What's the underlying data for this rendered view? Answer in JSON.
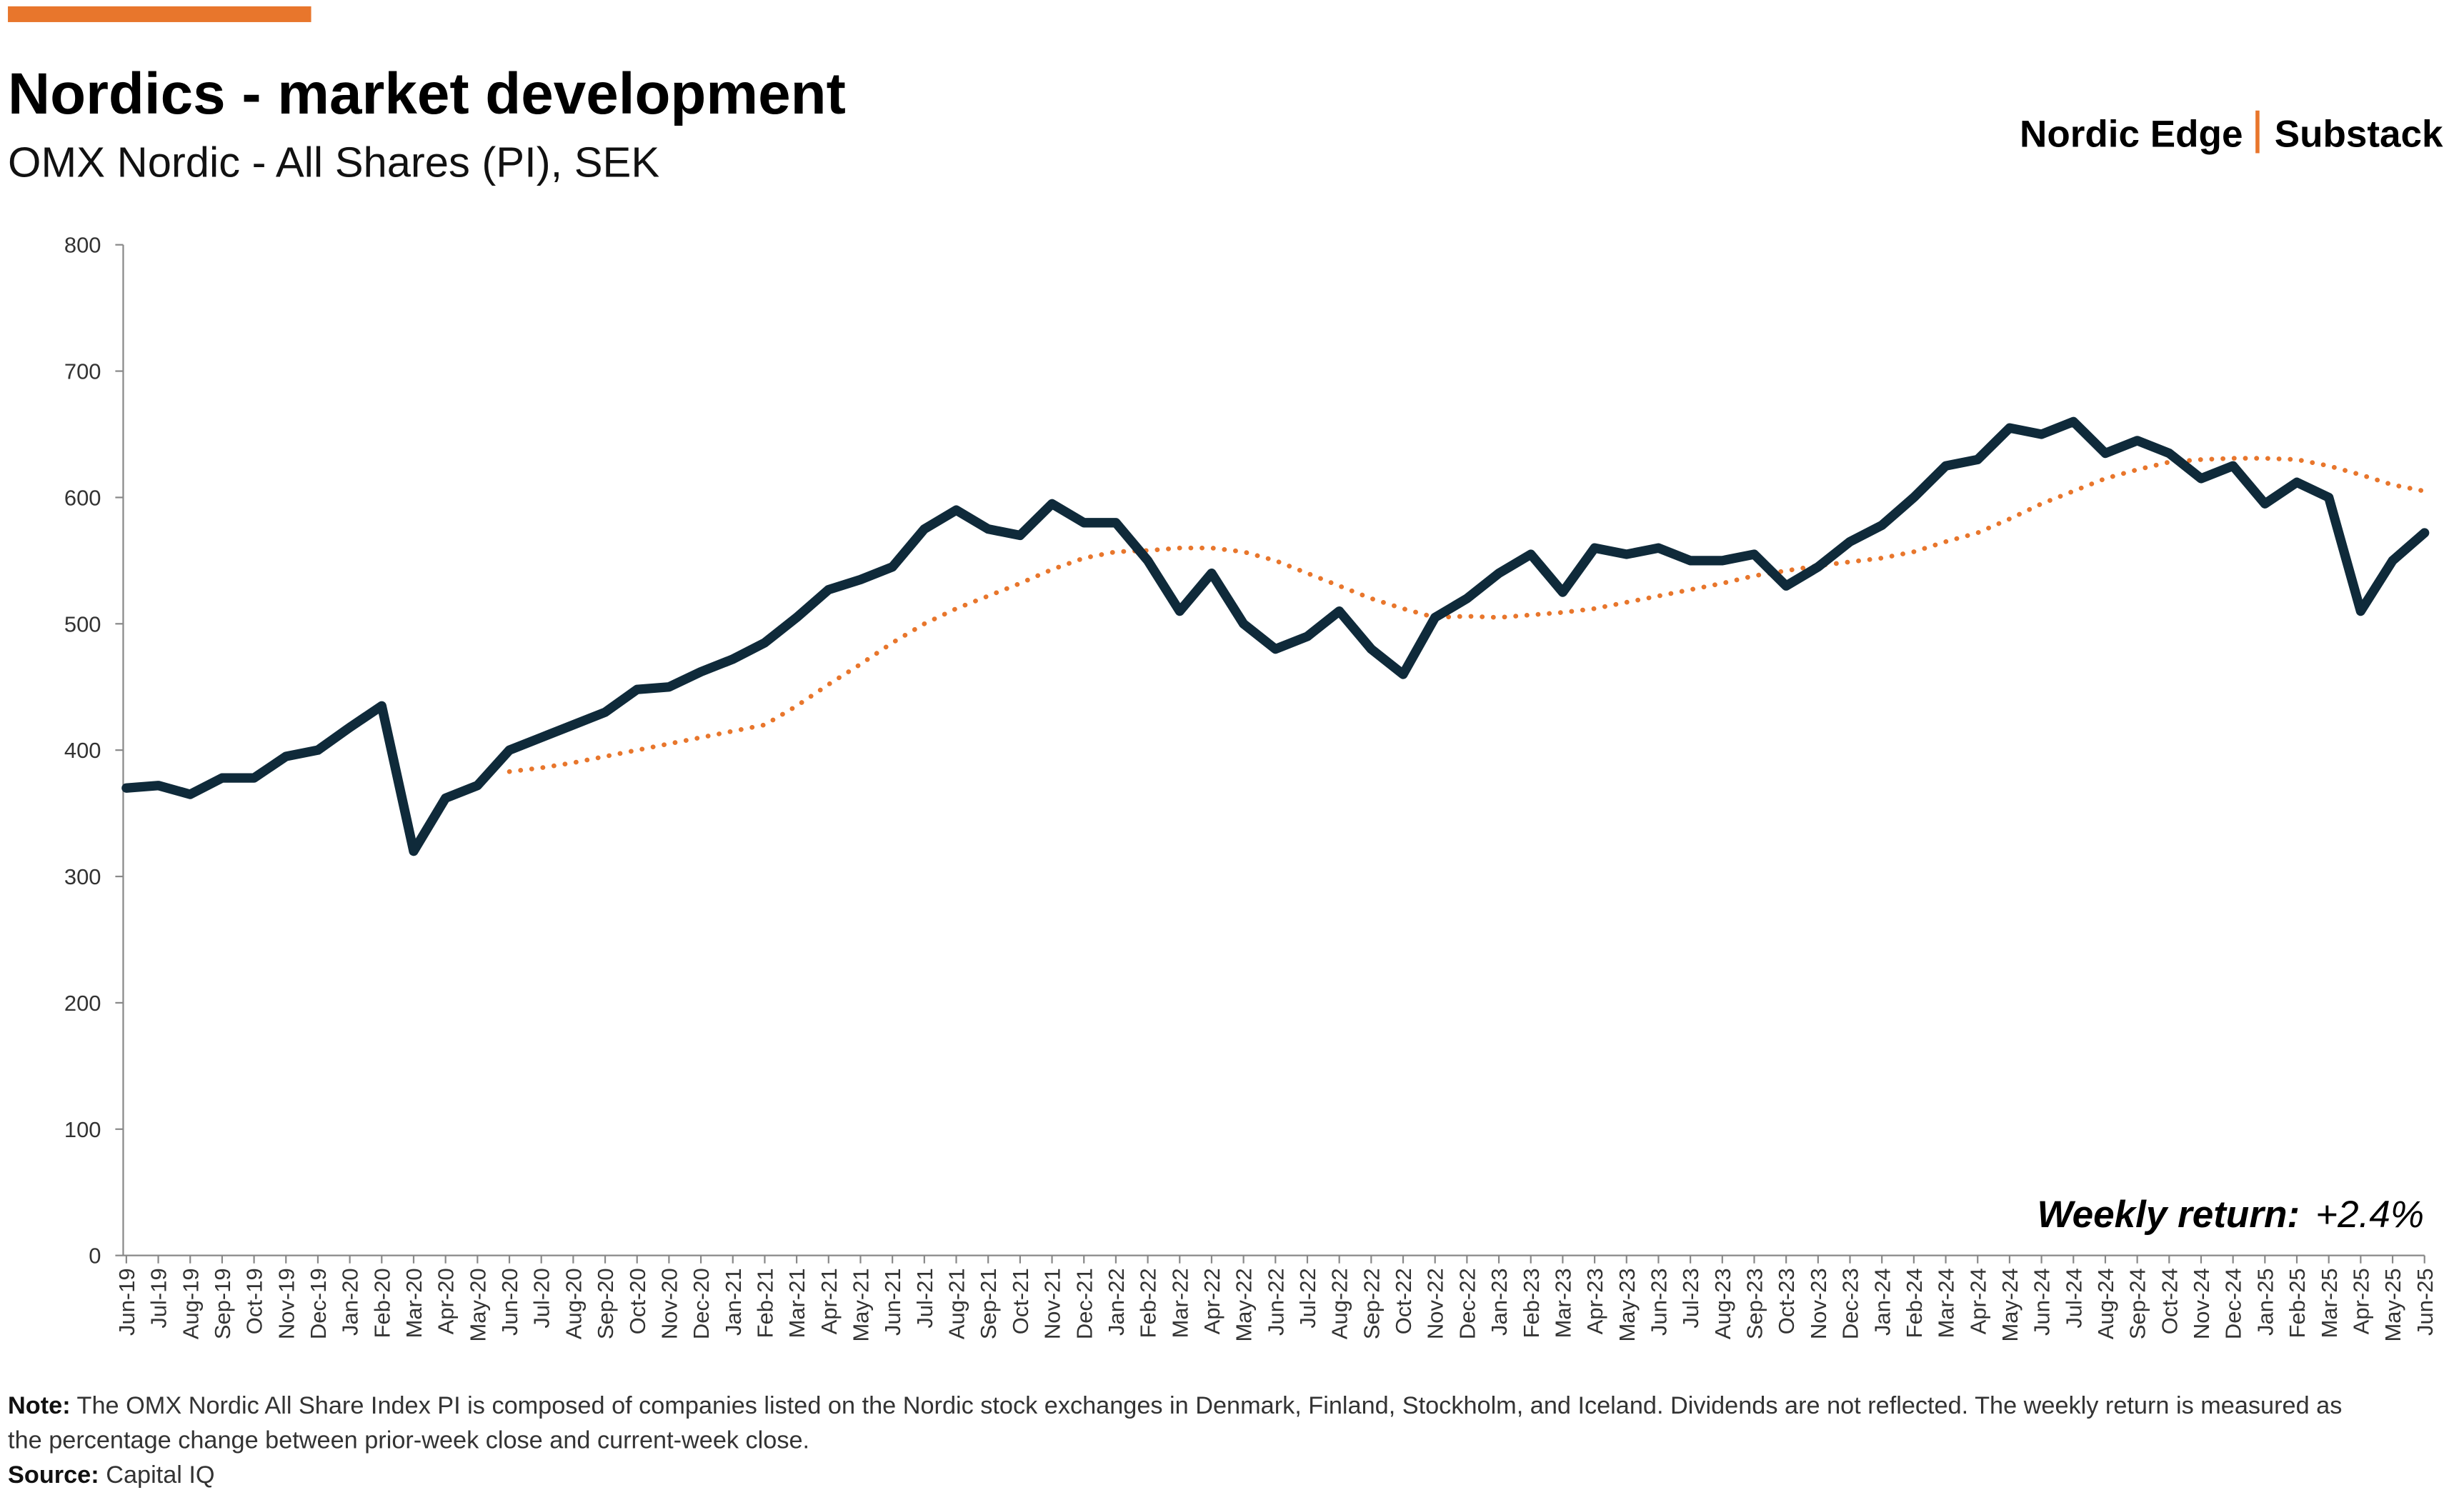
{
  "chart_data": {
    "type": "line",
    "title": "Nordics - market development",
    "subtitle": "OMX Nordic - All Shares (PI), SEK",
    "annotation": {
      "label": "Weekly return:",
      "value": "+2.4%"
    },
    "categories": [
      "Jun-19",
      "Jul-19",
      "Aug-19",
      "Sep-19",
      "Oct-19",
      "Nov-19",
      "Dec-19",
      "Jan-20",
      "Feb-20",
      "Mar-20",
      "Apr-20",
      "May-20",
      "Jun-20",
      "Jul-20",
      "Aug-20",
      "Sep-20",
      "Oct-20",
      "Nov-20",
      "Dec-20",
      "Jan-21",
      "Feb-21",
      "Mar-21",
      "Apr-21",
      "May-21",
      "Jun-21",
      "Jul-21",
      "Aug-21",
      "Sep-21",
      "Oct-21",
      "Nov-21",
      "Dec-21",
      "Jan-22",
      "Feb-22",
      "Mar-22",
      "Apr-22",
      "May-22",
      "Jun-22",
      "Jul-22",
      "Aug-22",
      "Sep-22",
      "Oct-22",
      "Nov-22",
      "Dec-22",
      "Jan-23",
      "Feb-23",
      "Mar-23",
      "Apr-23",
      "May-23",
      "Jun-23",
      "Jul-23",
      "Aug-23",
      "Sep-23",
      "Oct-23",
      "Nov-23",
      "Dec-23",
      "Jan-24",
      "Feb-24",
      "Mar-24",
      "Apr-24",
      "May-24",
      "Jun-24",
      "Jul-24",
      "Aug-24",
      "Sep-24",
      "Oct-24",
      "Nov-24",
      "Dec-24",
      "Jan-25",
      "Feb-25",
      "Mar-25",
      "Apr-25",
      "May-25",
      "Jun-25"
    ],
    "series": [
      {
        "color": "#0f2a3a",
        "style": "solid",
        "values": [
          370,
          372,
          365,
          378,
          378,
          395,
          400,
          418,
          435,
          320,
          362,
          372,
          400,
          410,
          420,
          430,
          448,
          450,
          462,
          472,
          485,
          505,
          527,
          535,
          545,
          575,
          590,
          575,
          570,
          595,
          580,
          580,
          550,
          510,
          540,
          500,
          480,
          490,
          510,
          480,
          460,
          505,
          520,
          540,
          555,
          525,
          560,
          555,
          560,
          550,
          550,
          555,
          530,
          545,
          565,
          578,
          600,
          625,
          630,
          655,
          650,
          660,
          635,
          645,
          635,
          615,
          625,
          595,
          612,
          600,
          510,
          550,
          572
        ]
      },
      {
        "color": "#e8762c",
        "style": "dotted",
        "values": [
          null,
          null,
          null,
          null,
          null,
          null,
          null,
          null,
          null,
          null,
          null,
          null,
          383,
          386,
          390,
          395,
          400,
          405,
          410,
          415,
          420,
          435,
          452,
          468,
          485,
          500,
          512,
          522,
          532,
          543,
          552,
          557,
          558,
          560,
          560,
          557,
          550,
          540,
          530,
          520,
          512,
          505,
          506,
          505,
          507,
          509,
          512,
          517,
          522,
          527,
          532,
          538,
          542,
          546,
          549,
          552,
          557,
          565,
          572,
          583,
          595,
          605,
          615,
          622,
          628,
          630,
          631,
          631,
          630,
          625,
          618,
          610,
          605
        ]
      }
    ],
    "ylim": [
      0,
      800
    ],
    "yticks": [
      0,
      100,
      200,
      300,
      400,
      500,
      600,
      700,
      800
    ],
    "grid": false
  },
  "brand": {
    "name": "Nordic Edge",
    "platform": "Substack"
  },
  "footer": {
    "note_label": "Note:",
    "note": "The OMX Nordic All Share Index PI is composed of companies listed on the Nordic stock exchanges in Denmark, Finland, Stockholm, and Iceland. Dividends are not reflected. The weekly return is measured as the percentage change between prior-week close and current-week close.",
    "source_label": "Source:",
    "source": "Capital IQ"
  }
}
